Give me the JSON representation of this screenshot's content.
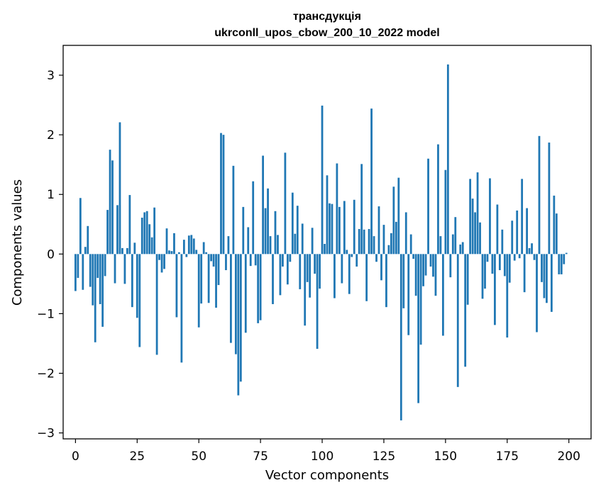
{
  "title": {
    "line1": "трансдукція",
    "line2": "ukrconll_upos_cbow_200_10_2022 model"
  },
  "colors": {
    "bar": "#1f77b4",
    "axis": "#000000",
    "background": "#ffffff"
  },
  "chart_data": {
    "type": "bar",
    "title": "трансдукція ukrconll_upos_cbow_200_10_2022 model",
    "xlabel": "Vector components",
    "ylabel": "Components values",
    "xlim": [
      -5,
      209
    ],
    "ylim": [
      -3.1,
      3.5
    ],
    "xticks": [
      0,
      25,
      50,
      75,
      100,
      125,
      150,
      175,
      200
    ],
    "yticks": [
      -3,
      -2,
      -1,
      0,
      1,
      2,
      3
    ],
    "ytick_labels": [
      "−3",
      "−2",
      "−1",
      "0",
      "1",
      "2",
      "3"
    ],
    "grid": false,
    "legend": "none",
    "x": "0..199 (one bar per vector component)",
    "values": [
      -0.62,
      -0.4,
      0.94,
      -0.6,
      0.12,
      0.47,
      -0.55,
      -0.86,
      -1.48,
      -0.4,
      -0.84,
      -1.22,
      -0.37,
      0.74,
      1.75,
      1.57,
      -0.49,
      0.82,
      2.21,
      0.1,
      -0.5,
      0.1,
      0.99,
      -0.89,
      0.19,
      -1.07,
      -1.56,
      0.61,
      0.7,
      0.72,
      0.5,
      0.28,
      0.78,
      -1.69,
      -0.1,
      -0.31,
      -0.25,
      0.43,
      0.06,
      0.05,
      0.35,
      -1.06,
      0.03,
      -1.82,
      0.24,
      -0.05,
      0.31,
      0.32,
      0.26,
      0.07,
      -1.23,
      -0.83,
      0.2,
      0.03,
      -0.82,
      -0.12,
      -0.21,
      -0.9,
      -0.52,
      2.03,
      2.0,
      -0.27,
      0.3,
      -1.49,
      1.48,
      -1.68,
      -2.37,
      -2.14,
      0.79,
      -1.32,
      0.45,
      -0.2,
      1.22,
      -0.19,
      -1.16,
      -1.11,
      1.65,
      0.77,
      1.1,
      0.3,
      -0.84,
      0.72,
      0.32,
      -0.69,
      -0.21,
      1.7,
      -0.51,
      -0.13,
      1.03,
      0.34,
      0.81,
      -0.59,
      0.51,
      -1.2,
      -0.47,
      -0.73,
      0.44,
      -0.33,
      -1.59,
      -0.58,
      2.49,
      0.17,
      1.32,
      0.85,
      0.84,
      -0.74,
      1.52,
      0.79,
      -0.49,
      0.89,
      0.07,
      -0.67,
      -0.05,
      0.91,
      -0.21,
      0.42,
      1.51,
      0.41,
      -0.79,
      0.42,
      2.44,
      0.3,
      -0.13,
      0.8,
      -0.44,
      0.49,
      -0.89,
      0.15,
      0.35,
      1.13,
      0.54,
      1.28,
      -2.79,
      -0.91,
      0.7,
      -1.36,
      0.33,
      -0.08,
      -0.7,
      -2.5,
      -1.52,
      -0.54,
      -0.36,
      1.6,
      -0.21,
      -0.38,
      -0.7,
      1.84,
      0.3,
      -1.37,
      1.41,
      3.18,
      -0.39,
      0.33,
      0.62,
      -2.23,
      0.16,
      0.2,
      -1.89,
      -0.85,
      1.26,
      0.93,
      0.7,
      1.37,
      0.53,
      -0.75,
      -0.58,
      -0.13,
      1.27,
      -0.33,
      -1.19,
      0.83,
      -0.27,
      0.41,
      -0.37,
      -1.4,
      -0.48,
      0.56,
      -0.11,
      0.73,
      -0.07,
      1.26,
      -0.64,
      0.77,
      0.1,
      0.18,
      -0.1,
      -1.31,
      1.98,
      -0.47,
      -0.74,
      -0.82,
      1.87,
      -0.97,
      0.98,
      0.68,
      -0.34,
      -0.34,
      -0.17,
      0.02
    ]
  }
}
